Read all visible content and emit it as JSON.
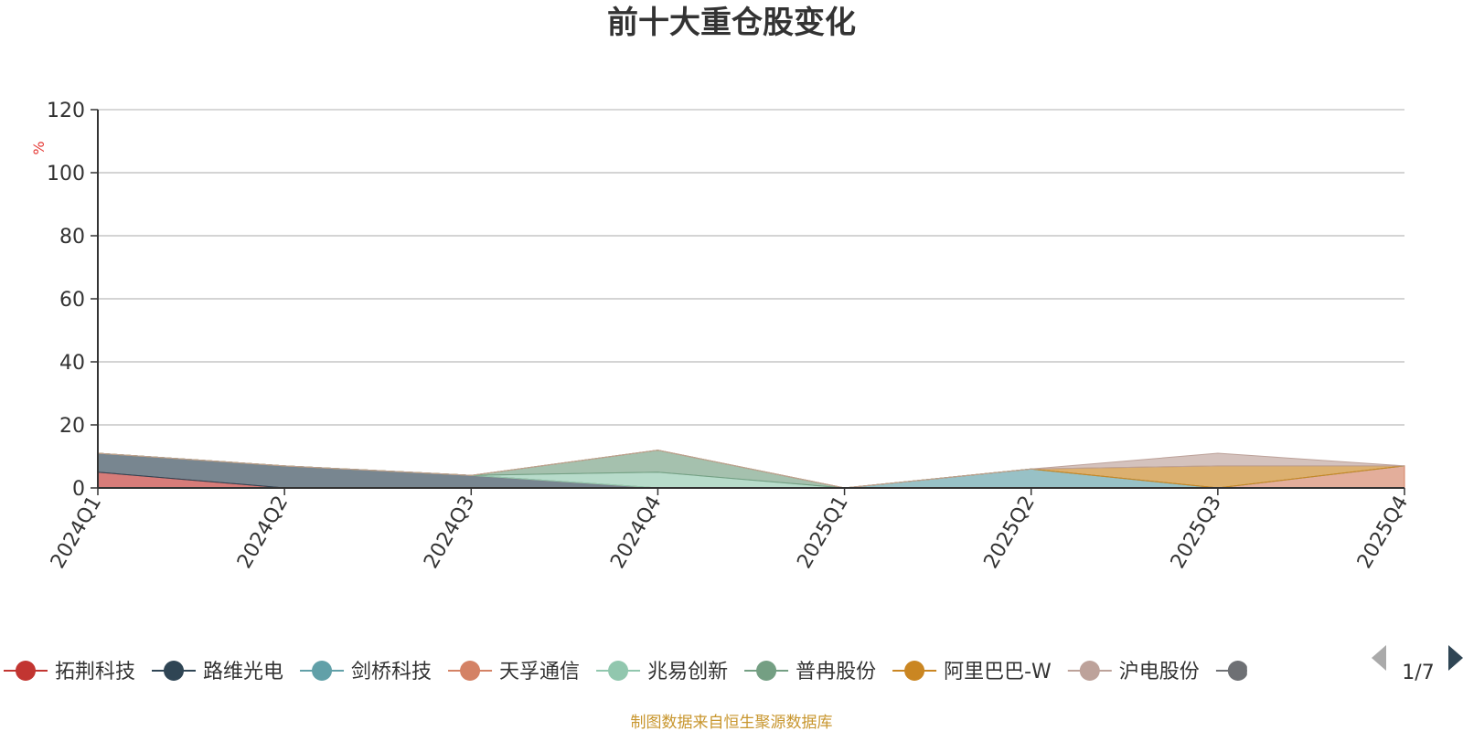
{
  "chart_data": {
    "type": "area",
    "title": "前十大重仓股变化",
    "subtitle": "",
    "xlabel": "",
    "ylabel": "%",
    "ylim": [
      0,
      120
    ],
    "yticks": [
      0,
      20,
      40,
      60,
      80,
      100,
      120
    ],
    "categories": [
      "2024Q1",
      "2024Q2",
      "2024Q3",
      "2024Q4",
      "2025Q1",
      "2025Q2",
      "2025Q3",
      "2025Q4"
    ],
    "grid": true,
    "stacked": true,
    "legend_position": "bottom",
    "legend_page": "1/7",
    "series": [
      {
        "name": "拓荆科技",
        "color": "#c23531",
        "values": [
          5,
          0,
          0,
          0,
          0,
          0,
          0,
          0
        ]
      },
      {
        "name": "路维光电",
        "color": "#2f4554",
        "values": [
          6,
          7,
          4,
          0,
          0,
          0,
          0,
          0
        ]
      },
      {
        "name": "剑桥科技",
        "color": "#61a0a8",
        "values": [
          0,
          0,
          0,
          0,
          0,
          6,
          0,
          0
        ]
      },
      {
        "name": "天孚通信",
        "color": "#d48265",
        "values": [
          0,
          0,
          0,
          0,
          0,
          0,
          0,
          7
        ]
      },
      {
        "name": "兆易创新",
        "color": "#91c7ae",
        "values": [
          0,
          0,
          0,
          5,
          0,
          0,
          0,
          0
        ]
      },
      {
        "name": "普冉股份",
        "color": "#749f83",
        "values": [
          0,
          0,
          0,
          7,
          0,
          0,
          0,
          0
        ]
      },
      {
        "name": "阿里巴巴-W",
        "color": "#ca8622",
        "values": [
          0,
          0,
          0,
          0,
          0,
          0,
          7,
          0
        ]
      },
      {
        "name": "沪电股份",
        "color": "#bda29a",
        "values": [
          0,
          0,
          0,
          0,
          0,
          0,
          4,
          0
        ]
      }
    ],
    "hidden_legend_color": "#6e7074"
  },
  "legend": {
    "prev_icon": "triangle-left-icon",
    "next_icon": "triangle-right-icon"
  },
  "footer": {
    "source": "制图数据来自恒生聚源数据库"
  }
}
